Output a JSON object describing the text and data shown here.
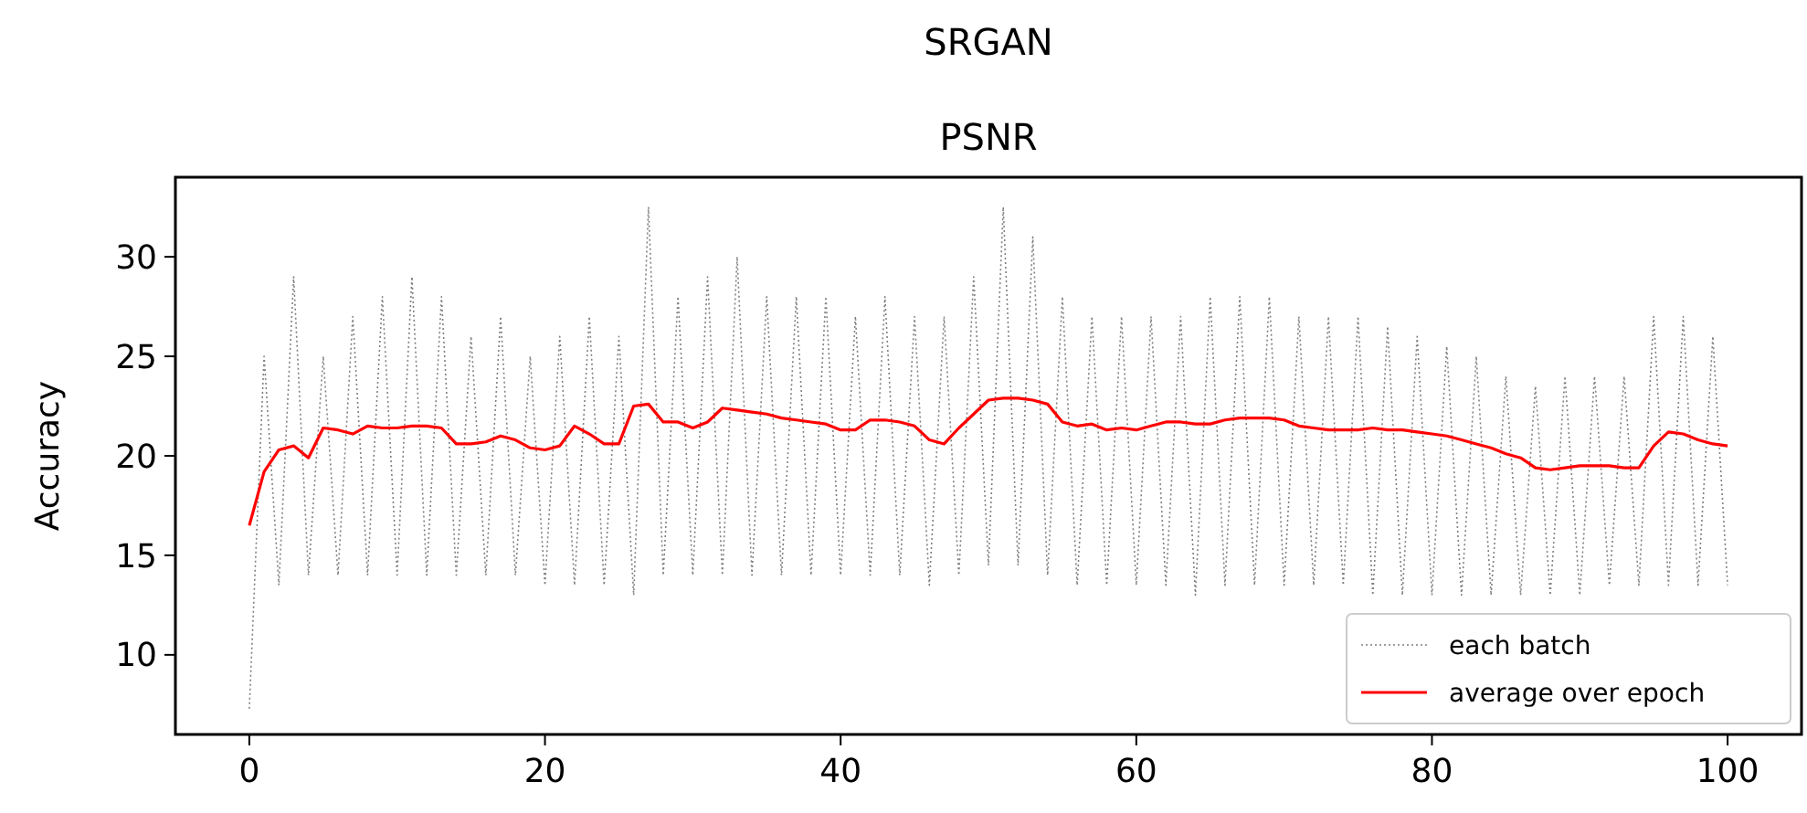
{
  "chart_data": {
    "type": "line",
    "title": "SRGAN",
    "subtitle": "PSNR",
    "ylabel": "Accuracy",
    "x": [
      0,
      1,
      2,
      3,
      4,
      5,
      6,
      7,
      8,
      9,
      10,
      11,
      12,
      13,
      14,
      15,
      16,
      17,
      18,
      19,
      20,
      21,
      22,
      23,
      24,
      25,
      26,
      27,
      28,
      29,
      30,
      31,
      32,
      33,
      34,
      35,
      36,
      37,
      38,
      39,
      40,
      41,
      42,
      43,
      44,
      45,
      46,
      47,
      48,
      49,
      50,
      51,
      52,
      53,
      54,
      55,
      56,
      57,
      58,
      59,
      60,
      61,
      62,
      63,
      64,
      65,
      66,
      67,
      68,
      69,
      70,
      71,
      72,
      73,
      74,
      75,
      76,
      77,
      78,
      79,
      80,
      81,
      82,
      83,
      84,
      85,
      86,
      87,
      88,
      89,
      90,
      91,
      92,
      93,
      94,
      95,
      96,
      97,
      98,
      99,
      100
    ],
    "series": [
      {
        "name": "each batch",
        "color": "#808080",
        "line_style": "dotted",
        "values": [
          7.3,
          25,
          13.5,
          29,
          14,
          25,
          14,
          27,
          14,
          28,
          14,
          29,
          14,
          28,
          14,
          26,
          14,
          27,
          14,
          25,
          13.5,
          26,
          13.5,
          27,
          13.5,
          26,
          13,
          32.5,
          14,
          28,
          14,
          29,
          14,
          30,
          14,
          28,
          14,
          28,
          14,
          28,
          14,
          27,
          14,
          28,
          14,
          27,
          13.5,
          27,
          14,
          29,
          14.5,
          32.5,
          14.5,
          31,
          14,
          28,
          13.5,
          27,
          13.5,
          27,
          13.5,
          27,
          13.5,
          27,
          13,
          28,
          13.5,
          28,
          13.5,
          28,
          13.5,
          27,
          13.5,
          27,
          13.5,
          27,
          13,
          26.5,
          13,
          26,
          13,
          25.5,
          13,
          25,
          13,
          24,
          13,
          23.5,
          13,
          24,
          13,
          24,
          13.5,
          24,
          13.5,
          27,
          13.5,
          27,
          13.5,
          26,
          13.5
        ]
      },
      {
        "name": "average over epoch",
        "color": "#ff0000",
        "line_style": "solid",
        "values": [
          16.5,
          19.2,
          20.3,
          20.5,
          19.9,
          21.4,
          21.3,
          21.1,
          21.5,
          21.4,
          21.4,
          21.5,
          21.5,
          21.4,
          20.6,
          20.6,
          20.7,
          21.0,
          20.8,
          20.4,
          20.3,
          20.5,
          21.5,
          21.1,
          20.6,
          20.6,
          22.5,
          22.6,
          21.7,
          21.7,
          21.4,
          21.7,
          22.4,
          22.3,
          22.2,
          22.1,
          21.9,
          21.8,
          21.7,
          21.6,
          21.3,
          21.3,
          21.8,
          21.8,
          21.7,
          21.5,
          20.8,
          20.6,
          21.4,
          22.1,
          22.8,
          22.9,
          22.9,
          22.8,
          22.6,
          21.7,
          21.5,
          21.6,
          21.3,
          21.4,
          21.3,
          21.5,
          21.7,
          21.7,
          21.6,
          21.6,
          21.8,
          21.9,
          21.9,
          21.9,
          21.8,
          21.5,
          21.4,
          21.3,
          21.3,
          21.3,
          21.4,
          21.3,
          21.3,
          21.2,
          21.1,
          21.0,
          20.8,
          20.6,
          20.4,
          20.1,
          19.9,
          19.4,
          19.3,
          19.4,
          19.5,
          19.5,
          19.5,
          19.4,
          19.4,
          20.5,
          21.2,
          21.1,
          20.8,
          20.6,
          20.5
        ]
      }
    ],
    "xlim": [
      -5,
      105
    ],
    "ylim": [
      6,
      34
    ],
    "xticks": [
      0,
      20,
      40,
      60,
      80,
      100
    ],
    "yticks": [
      10,
      15,
      20,
      25,
      30
    ],
    "grid": false,
    "legend": "bottom right",
    "marker": "none"
  }
}
